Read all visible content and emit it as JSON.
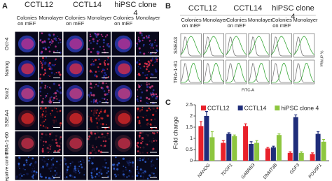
{
  "panel_a": {
    "label": "A",
    "groups": [
      "CCTL12",
      "CCTL14",
      "hiPSC clone 4"
    ],
    "columns": [
      "Colonies on mEF",
      "Monolayer",
      "Colonies on mEF",
      "Monolayer",
      "Colonies on mEF",
      "Monolayer"
    ],
    "rows": [
      "Oct-4",
      "Nanog",
      "Sox2",
      "SSEA4",
      "TRA-1-60",
      "Negative control"
    ]
  },
  "panel_b": {
    "label": "B",
    "groups": [
      "CCTL12",
      "CCTL14",
      "hiPSC clone 4"
    ],
    "columns": [
      "Colonies on mEF",
      "Monolayer",
      "Colonies on mEF",
      "Monolayer",
      "Colonies on mEF",
      "Monolayer"
    ],
    "rows": [
      "SSEA3",
      "TRA-1-81"
    ],
    "y_label": "% of Max",
    "x_label": "FITC-A"
  },
  "panel_c_label": "C",
  "chart_data": {
    "type": "bar",
    "y_label": "Fold change",
    "categories": [
      "NANOG",
      "TDGF1",
      "GABRB3",
      "DNMT3B",
      "GDF3",
      "POU5F1"
    ],
    "series": [
      {
        "name": "CCTL12",
        "color": "#e8202a",
        "values": [
          1.55,
          0.8,
          1.55,
          0.55,
          0.35,
          0.3
        ],
        "errors": [
          0.2,
          0.1,
          0.1,
          0.05,
          0.05,
          0.05
        ]
      },
      {
        "name": "CCTL14",
        "color": "#1f2d7a",
        "values": [
          2.0,
          1.2,
          0.75,
          0.6,
          1.95,
          1.2
        ],
        "errors": [
          0.2,
          0.05,
          0.1,
          0.05,
          0.1,
          0.1
        ]
      },
      {
        "name": "hiPSC clone 4",
        "color": "#8dc63f",
        "values": [
          1.05,
          1.1,
          0.8,
          1.15,
          0.35,
          0.85
        ],
        "errors": [
          0.25,
          0.05,
          0.1,
          0.05,
          0.05,
          0.1
        ]
      }
    ],
    "ylim": [
      0,
      2.5
    ],
    "yticks": [
      0,
      0.5,
      1,
      1.5,
      2,
      2.5
    ]
  }
}
